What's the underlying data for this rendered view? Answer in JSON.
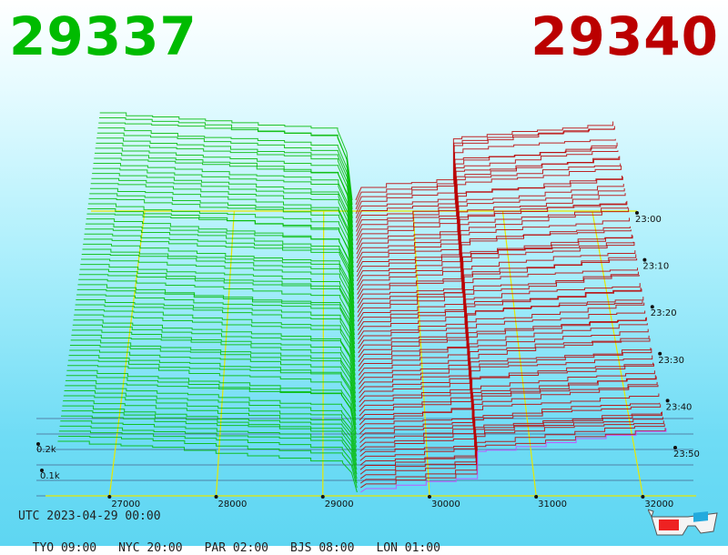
{
  "header": {
    "bid_price": "29337",
    "ask_price": "29340"
  },
  "footer": {
    "utc_label": "UTC 2023-04-29 00:00",
    "clocks": [
      "TYO 09:00",
      "NYC 20:00",
      "PAR 02:00",
      "BJS 08:00",
      "LON 01:00"
    ]
  },
  "chart_data": {
    "type": "area",
    "title": "",
    "x_ticks": [
      "27000",
      "28000",
      "29000",
      "30000",
      "31000",
      "32000"
    ],
    "x_range": [
      26400,
      32500
    ],
    "depth_ticks": [
      "0.1k",
      "0.2k"
    ],
    "time_ticks": [
      "23:00",
      "23:10",
      "23:20",
      "23:30",
      "23:40",
      "23:50"
    ],
    "mid_price": 29338,
    "series": [
      {
        "side": "bid",
        "color": "#00bb00",
        "last_price": 29337
      },
      {
        "side": "ask",
        "color": "#bb0000",
        "last_price": 29340
      }
    ],
    "grid": true,
    "colors": {
      "bid": "#00bb00",
      "ask": "#bb0000",
      "grid": "#e8e800",
      "base": "#3a3a6a",
      "latest_ask_edge": "#cc44ff"
    }
  }
}
